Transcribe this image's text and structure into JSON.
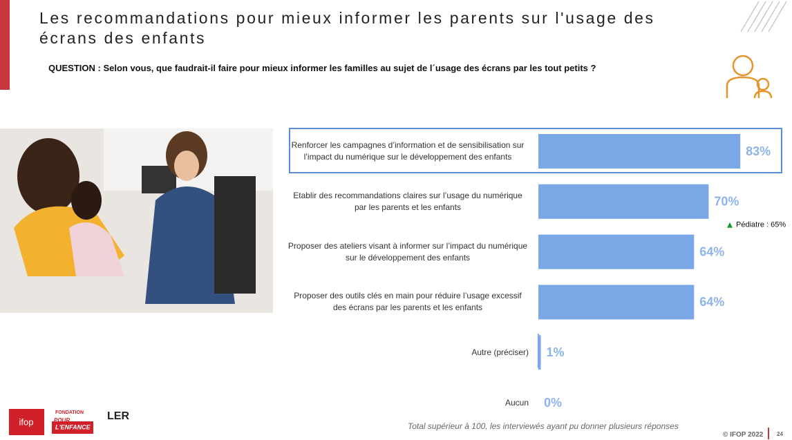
{
  "slide": {
    "title": [
      "Les recommandations pour mieux informer les parents sur l'usage des",
      "écrans des enfants"
    ],
    "question": "QUESTION : Selon vous, que faudrait-il faire pour mieux informer les familles au sujet de l´usage des écrans par les tout petits ?",
    "footnote": "Total supérieur à 100, les interviewés ayant pu donner plusieurs réponses",
    "copyright": "© IFOP 2022",
    "page": "24",
    "logos": {
      "ifop": "ifop",
      "fondation": "FONDATION",
      "pour": "POUR",
      "enfance": "L'ENFANCE",
      "ler": "LER"
    }
  },
  "chart_data": {
    "type": "hbar",
    "categories": [
      "Renforcer les campagnes d’information et de sensibilisation sur l’impact du numérique sur le développement des enfants",
      "Etablir des recommandations claires sur l’usage du numérique par les parents et les enfants",
      "Proposer des ateliers visant à informer sur l’impact du numérique sur le développement des enfants",
      "Proposer des outils clés en main pour réduire l’usage excessif des écrans par les parents et les enfants",
      "Autre (préciser)",
      "Aucun"
    ],
    "values": [
      83,
      70,
      64,
      64,
      1,
      0
    ],
    "value_labels": [
      "83%",
      "70%",
      "64%",
      "64%",
      "1%",
      "0%"
    ],
    "color": "#7aa8e6",
    "label_color": "#8db4ea",
    "xlim": [
      0,
      100
    ],
    "highlight": 0,
    "annotations": [
      {
        "category": 1,
        "text": "Pédiatre : 65%"
      }
    ]
  }
}
